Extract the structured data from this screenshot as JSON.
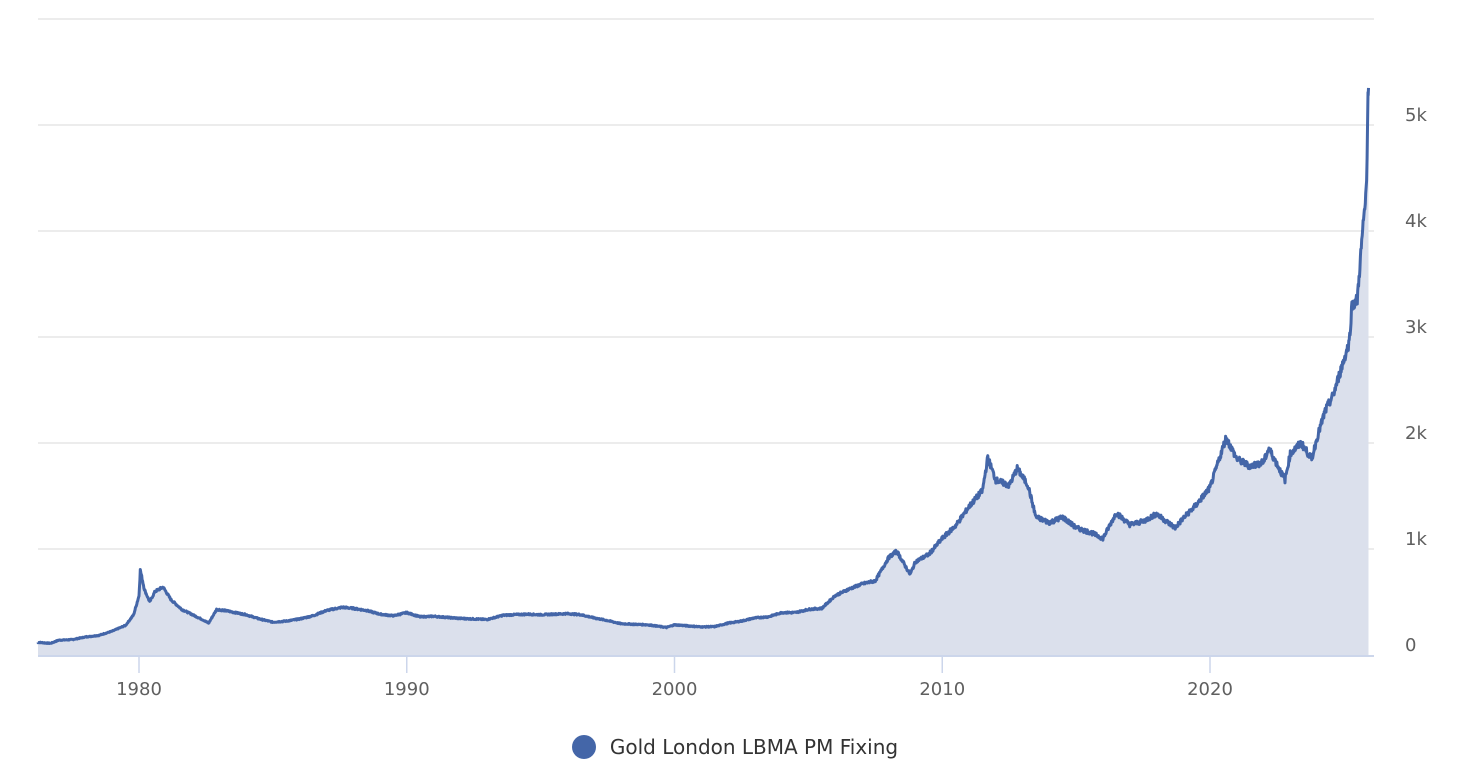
{
  "chart_data": {
    "type": "area",
    "title": "",
    "xlabel": "",
    "ylabel": "",
    "series": [
      {
        "name": "Gold London LBMA PM Fixing",
        "color": "#4466a8",
        "fill": "#dbe0ec",
        "points": [
          [
            1976.2,
            120
          ],
          [
            1976.7,
            110
          ],
          [
            1977.0,
            140
          ],
          [
            1977.5,
            145
          ],
          [
            1978.0,
            170
          ],
          [
            1978.5,
            185
          ],
          [
            1979.0,
            225
          ],
          [
            1979.5,
            280
          ],
          [
            1979.8,
            380
          ],
          [
            1980.0,
            560
          ],
          [
            1980.05,
            800
          ],
          [
            1980.2,
            620
          ],
          [
            1980.4,
            500
          ],
          [
            1980.6,
            600
          ],
          [
            1980.9,
            640
          ],
          [
            1981.2,
            520
          ],
          [
            1981.6,
            430
          ],
          [
            1982.0,
            380
          ],
          [
            1982.4,
            330
          ],
          [
            1982.6,
            300
          ],
          [
            1982.9,
            430
          ],
          [
            1983.2,
            420
          ],
          [
            1983.6,
            400
          ],
          [
            1984.0,
            380
          ],
          [
            1984.5,
            340
          ],
          [
            1985.0,
            310
          ],
          [
            1985.5,
            320
          ],
          [
            1986.0,
            340
          ],
          [
            1986.5,
            370
          ],
          [
            1987.0,
            420
          ],
          [
            1987.6,
            450
          ],
          [
            1988.0,
            440
          ],
          [
            1988.5,
            420
          ],
          [
            1989.0,
            385
          ],
          [
            1989.5,
            370
          ],
          [
            1990.0,
            400
          ],
          [
            1990.5,
            360
          ],
          [
            1991.0,
            365
          ],
          [
            1991.5,
            355
          ],
          [
            1992.0,
            345
          ],
          [
            1992.5,
            340
          ],
          [
            1993.0,
            335
          ],
          [
            1993.6,
            375
          ],
          [
            1994.0,
            380
          ],
          [
            1994.5,
            385
          ],
          [
            1995.0,
            380
          ],
          [
            1995.5,
            385
          ],
          [
            1996.0,
            390
          ],
          [
            1996.5,
            380
          ],
          [
            1997.0,
            350
          ],
          [
            1997.5,
            325
          ],
          [
            1998.0,
            295
          ],
          [
            1998.5,
            290
          ],
          [
            1999.0,
            285
          ],
          [
            1999.7,
            260
          ],
          [
            2000.0,
            285
          ],
          [
            2000.5,
            275
          ],
          [
            2001.0,
            265
          ],
          [
            2001.5,
            268
          ],
          [
            2002.0,
            300
          ],
          [
            2002.5,
            320
          ],
          [
            2003.0,
            350
          ],
          [
            2003.5,
            360
          ],
          [
            2004.0,
            400
          ],
          [
            2004.5,
            400
          ],
          [
            2005.0,
            430
          ],
          [
            2005.5,
            440
          ],
          [
            2006.0,
            560
          ],
          [
            2006.5,
            620
          ],
          [
            2007.0,
            670
          ],
          [
            2007.5,
            700
          ],
          [
            2008.0,
            920
          ],
          [
            2008.3,
            980
          ],
          [
            2008.8,
            760
          ],
          [
            2009.0,
            880
          ],
          [
            2009.5,
            950
          ],
          [
            2010.0,
            1100
          ],
          [
            2010.5,
            1220
          ],
          [
            2011.0,
            1400
          ],
          [
            2011.5,
            1550
          ],
          [
            2011.7,
            1860
          ],
          [
            2012.0,
            1650
          ],
          [
            2012.5,
            1600
          ],
          [
            2012.8,
            1760
          ],
          [
            2013.2,
            1600
          ],
          [
            2013.5,
            1300
          ],
          [
            2014.0,
            1250
          ],
          [
            2014.5,
            1300
          ],
          [
            2015.0,
            1200
          ],
          [
            2015.6,
            1150
          ],
          [
            2016.0,
            1100
          ],
          [
            2016.5,
            1340
          ],
          [
            2017.0,
            1230
          ],
          [
            2017.5,
            1260
          ],
          [
            2018.0,
            1330
          ],
          [
            2018.7,
            1200
          ],
          [
            2019.0,
            1290
          ],
          [
            2019.5,
            1420
          ],
          [
            2020.0,
            1580
          ],
          [
            2020.6,
            2050
          ],
          [
            2021.0,
            1850
          ],
          [
            2021.5,
            1780
          ],
          [
            2022.0,
            1820
          ],
          [
            2022.2,
            1950
          ],
          [
            2022.8,
            1650
          ],
          [
            2023.0,
            1900
          ],
          [
            2023.4,
            2000
          ],
          [
            2023.8,
            1850
          ],
          [
            2024.0,
            2050
          ],
          [
            2024.3,
            2300
          ],
          [
            2024.6,
            2450
          ],
          [
            2024.9,
            2700
          ],
          [
            2025.2,
            2950
          ],
          [
            2025.3,
            3300
          ],
          [
            2025.5,
            3350
          ],
          [
            2025.7,
            4000
          ],
          [
            2025.8,
            4250
          ],
          [
            2025.85,
            4500
          ],
          [
            2025.9,
            5300
          ],
          [
            2025.92,
            5350
          ]
        ]
      }
    ],
    "x_ticks": [
      "1980",
      "1990",
      "2000",
      "2010",
      "2020"
    ],
    "x_tick_values": [
      1980,
      1990,
      2000,
      2010,
      2020
    ],
    "y_ticks": [
      "0",
      "1k",
      "2k",
      "3k",
      "4k",
      "5k"
    ],
    "y_tick_values": [
      0,
      1000,
      2000,
      3000,
      4000,
      5000
    ],
    "xlim": [
      1976.2,
      2025.95
    ],
    "ylim": [
      0,
      6000
    ],
    "grid": true,
    "y_axis_position": "right",
    "legend_position": "bottom"
  },
  "legend": {
    "label": "Gold London LBMA PM Fixing",
    "color": "#4466a8"
  }
}
